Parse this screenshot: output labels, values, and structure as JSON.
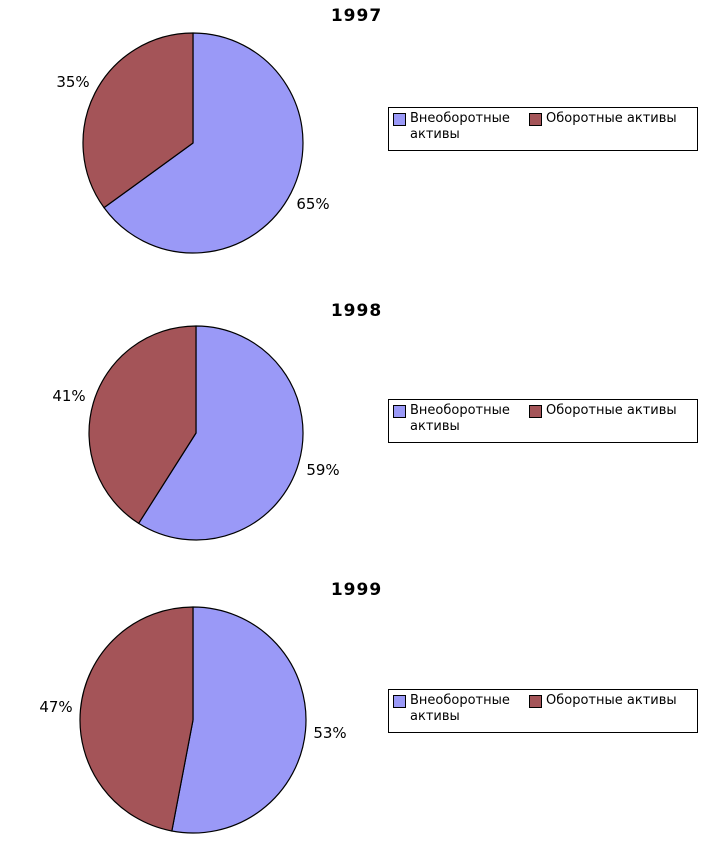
{
  "figure": {
    "background": "#FFFFFF",
    "outline_color": "#000000",
    "palette": {
      "vneoborotnye": "#9A99F7",
      "oborotnye": "#A45458"
    }
  },
  "chart_data": [
    {
      "type": "pie",
      "title": "1997",
      "start_angle_deg": 0,
      "direction": "clockwise",
      "legend_position": "right",
      "unit": "%",
      "slices": [
        {
          "name": "Внеоборотные активы",
          "value": 65,
          "label": "65%",
          "color": "#9A99F7"
        },
        {
          "name": "Оборотные активы",
          "value": 35,
          "label": "35%",
          "color": "#A45458"
        }
      ]
    },
    {
      "type": "pie",
      "title": "1998",
      "start_angle_deg": 0,
      "direction": "clockwise",
      "legend_position": "right",
      "unit": "%",
      "slices": [
        {
          "name": "Внеоборотные активы",
          "value": 59,
          "label": "59%",
          "color": "#9A99F7"
        },
        {
          "name": "Оборотные активы",
          "value": 41,
          "label": "41%",
          "color": "#A45458"
        }
      ]
    },
    {
      "type": "pie",
      "title": "1999",
      "start_angle_deg": 0,
      "direction": "clockwise",
      "legend_position": "right",
      "unit": "%",
      "slices": [
        {
          "name": "Внеоборотные активы",
          "value": 53,
          "label": "53%",
          "color": "#9A99F7"
        },
        {
          "name": "Оборотные активы",
          "value": 47,
          "label": "47%",
          "color": "#A45458"
        }
      ]
    }
  ]
}
